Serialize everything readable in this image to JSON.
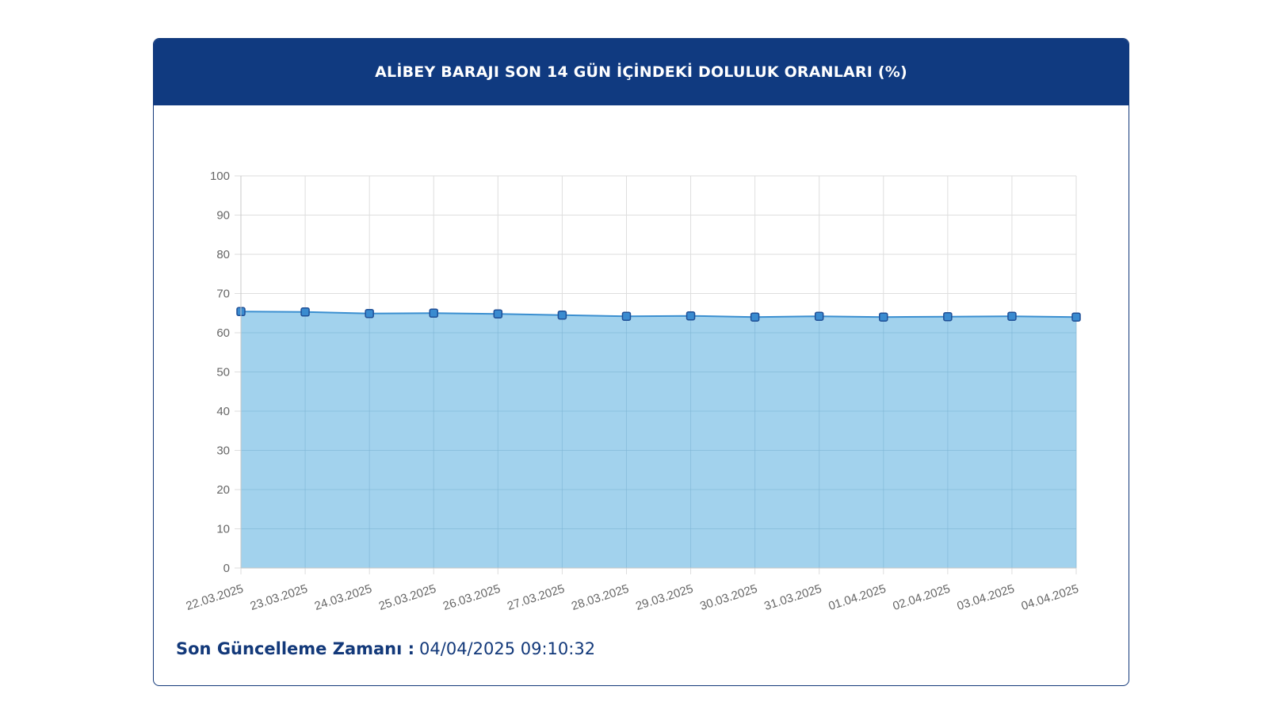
{
  "title": "ALİBEY BARAJI SON 14 GÜN İÇİNDEKİ DOLULUK ORANLARI (%)",
  "footer": {
    "label": "Son Güncelleme Zamanı :",
    "value": "04/04/2025 09:10:32"
  },
  "colors": {
    "header_bg": "#103a80",
    "fill": "#9dd0ec",
    "line": "#3b8fd0",
    "marker": "#3a8bd0",
    "marker_stroke": "#1f4f96"
  },
  "chart_data": {
    "type": "area",
    "title": "ALİBEY BARAJI SON 14 GÜN İÇİNDEKİ DOLULUK ORANLARI (%)",
    "xlabel": "",
    "ylabel": "",
    "categories": [
      "22.03.2025",
      "23.03.2025",
      "24.03.2025",
      "25.03.2025",
      "26.03.2025",
      "27.03.2025",
      "28.03.2025",
      "29.03.2025",
      "30.03.2025",
      "31.03.2025",
      "01.04.2025",
      "02.04.2025",
      "03.04.2025",
      "04.04.2025"
    ],
    "values": [
      65.4,
      65.3,
      64.9,
      65.0,
      64.8,
      64.5,
      64.2,
      64.3,
      64.0,
      64.2,
      64.0,
      64.1,
      64.2,
      64.0
    ],
    "ylim": [
      0,
      100
    ],
    "yticks": [
      0,
      10,
      20,
      30,
      40,
      50,
      60,
      70,
      80,
      90,
      100
    ],
    "grid": true,
    "legend": "none"
  }
}
